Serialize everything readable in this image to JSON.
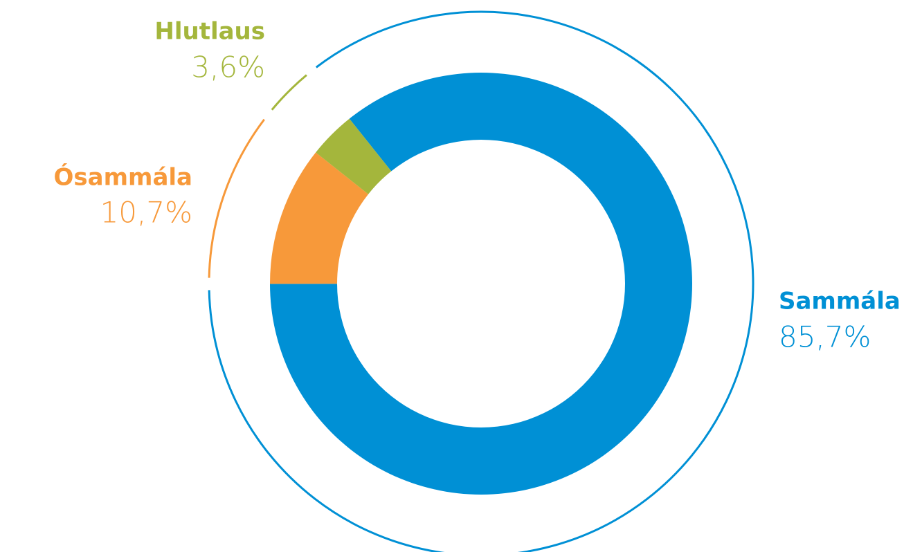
{
  "chart_data": {
    "type": "pie",
    "categories": [
      "Sammála",
      "Ósammála",
      "Hlutlaus"
    ],
    "values": [
      85.7,
      10.7,
      3.6
    ],
    "value_labels": [
      "85,7%",
      "10,7%",
      "3,6%"
    ],
    "colors": [
      "#0090d5",
      "#f7993a",
      "#a4b63c"
    ]
  }
}
